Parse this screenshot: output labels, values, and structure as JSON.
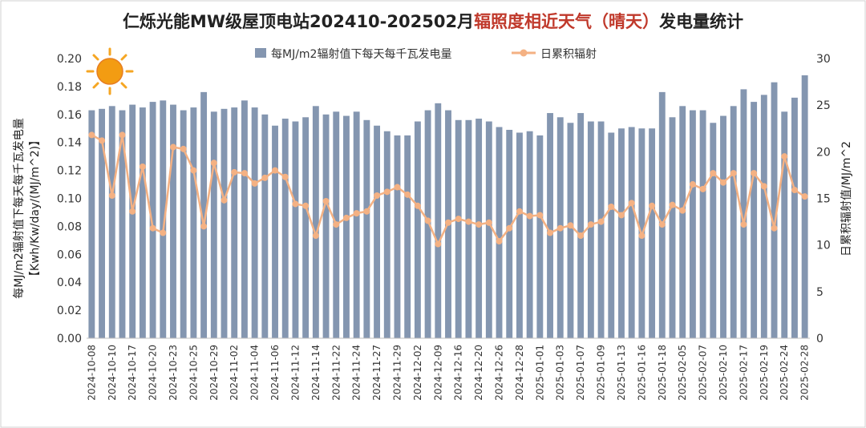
{
  "chart_data": {
    "type": "bar+line",
    "title_parts": [
      "仁烁光能MW级屋顶电站202410-202502月",
      "辐照度相近天气（晴天）",
      "发电量统计"
    ],
    "left_axis_label_lines": [
      "每MJ/m2辐射值下每天每千瓦发电量",
      "【Kwh/Kw/day/(MJ/m^2)】"
    ],
    "right_axis_label": "日累积辐射值/MJ/m^2",
    "left_ylim": [
      0,
      0.2
    ],
    "left_ticks": [
      "0.00",
      "0.02",
      "0.04",
      "0.06",
      "0.08",
      "0.10",
      "0.12",
      "0.14",
      "0.16",
      "0.18",
      "0.20"
    ],
    "right_ylim": [
      0,
      30
    ],
    "right_ticks": [
      "0",
      "5",
      "10",
      "15",
      "20",
      "25",
      "30"
    ],
    "x_tick_labels": [
      "2024-10-08",
      "2024-10-10",
      "2024-10-17",
      "2024-10-20",
      "2024-10-23",
      "2024-10-25",
      "2024-10-29",
      "2024-11-02",
      "2024-11-04",
      "2024-11-06",
      "2024-11-12",
      "2024-11-14",
      "2024-11-22",
      "2024-11-24",
      "2024-11-27",
      "2024-11-29",
      "2024-12-02",
      "2024-12-09",
      "2024-12-16",
      "2024-12-20",
      "2024-12-26",
      "2024-12-28",
      "2025-01-01",
      "2025-01-03",
      "2025-01-07",
      "2025-01-09",
      "2025-01-13",
      "2025-01-16",
      "2025-01-18",
      "2025-02-05",
      "2025-02-07",
      "2025-02-10",
      "2025-02-17",
      "2025-02-19",
      "2025-02-24",
      "2025-02-28"
    ],
    "grid": false,
    "legend_position": "top",
    "series": [
      {
        "name": "每MJ/m2辐射值下每天每千瓦发电量",
        "type": "bar",
        "axis": "left",
        "color": "#8496b0",
        "values": [
          0.163,
          0.164,
          0.166,
          0.163,
          0.167,
          0.165,
          0.169,
          0.17,
          0.167,
          0.163,
          0.165,
          0.176,
          0.162,
          0.164,
          0.165,
          0.17,
          0.165,
          0.16,
          0.152,
          0.157,
          0.155,
          0.158,
          0.166,
          0.16,
          0.162,
          0.159,
          0.162,
          0.156,
          0.152,
          0.148,
          0.145,
          0.145,
          0.155,
          0.163,
          0.168,
          0.163,
          0.156,
          0.156,
          0.157,
          0.155,
          0.151,
          0.149,
          0.147,
          0.148,
          0.145,
          0.161,
          0.158,
          0.154,
          0.161,
          0.155,
          0.155,
          0.147,
          0.15,
          0.151,
          0.15,
          0.15,
          0.176,
          0.158,
          0.166,
          0.163,
          0.163,
          0.154,
          0.159,
          0.166,
          0.178,
          0.169,
          0.174,
          0.183,
          0.162,
          0.172,
          0.188
        ]
      },
      {
        "name": "日累积辐射",
        "type": "line",
        "axis": "right",
        "color": "#f4b183",
        "values": [
          21.8,
          21.2,
          15.3,
          21.8,
          13.6,
          18.4,
          11.8,
          11.3,
          20.5,
          20.3,
          18.0,
          12.0,
          18.8,
          14.8,
          17.8,
          17.7,
          16.6,
          17.2,
          18.0,
          17.3,
          14.4,
          14.2,
          11.0,
          14.7,
          12.2,
          12.9,
          13.4,
          13.6,
          15.3,
          15.7,
          16.2,
          15.4,
          14.2,
          12.6,
          10.1,
          12.4,
          12.8,
          12.5,
          12.2,
          12.4,
          10.4,
          11.8,
          13.6,
          13.1,
          13.2,
          11.3,
          11.8,
          12.1,
          11.0,
          12.2,
          12.5,
          14.1,
          13.2,
          14.5,
          11.0,
          14.2,
          12.2,
          14.3,
          13.7,
          16.5,
          16.0,
          17.7,
          16.7,
          17.7,
          12.2,
          17.7,
          16.3,
          11.8,
          19.5,
          15.9,
          15.2
        ]
      }
    ]
  }
}
